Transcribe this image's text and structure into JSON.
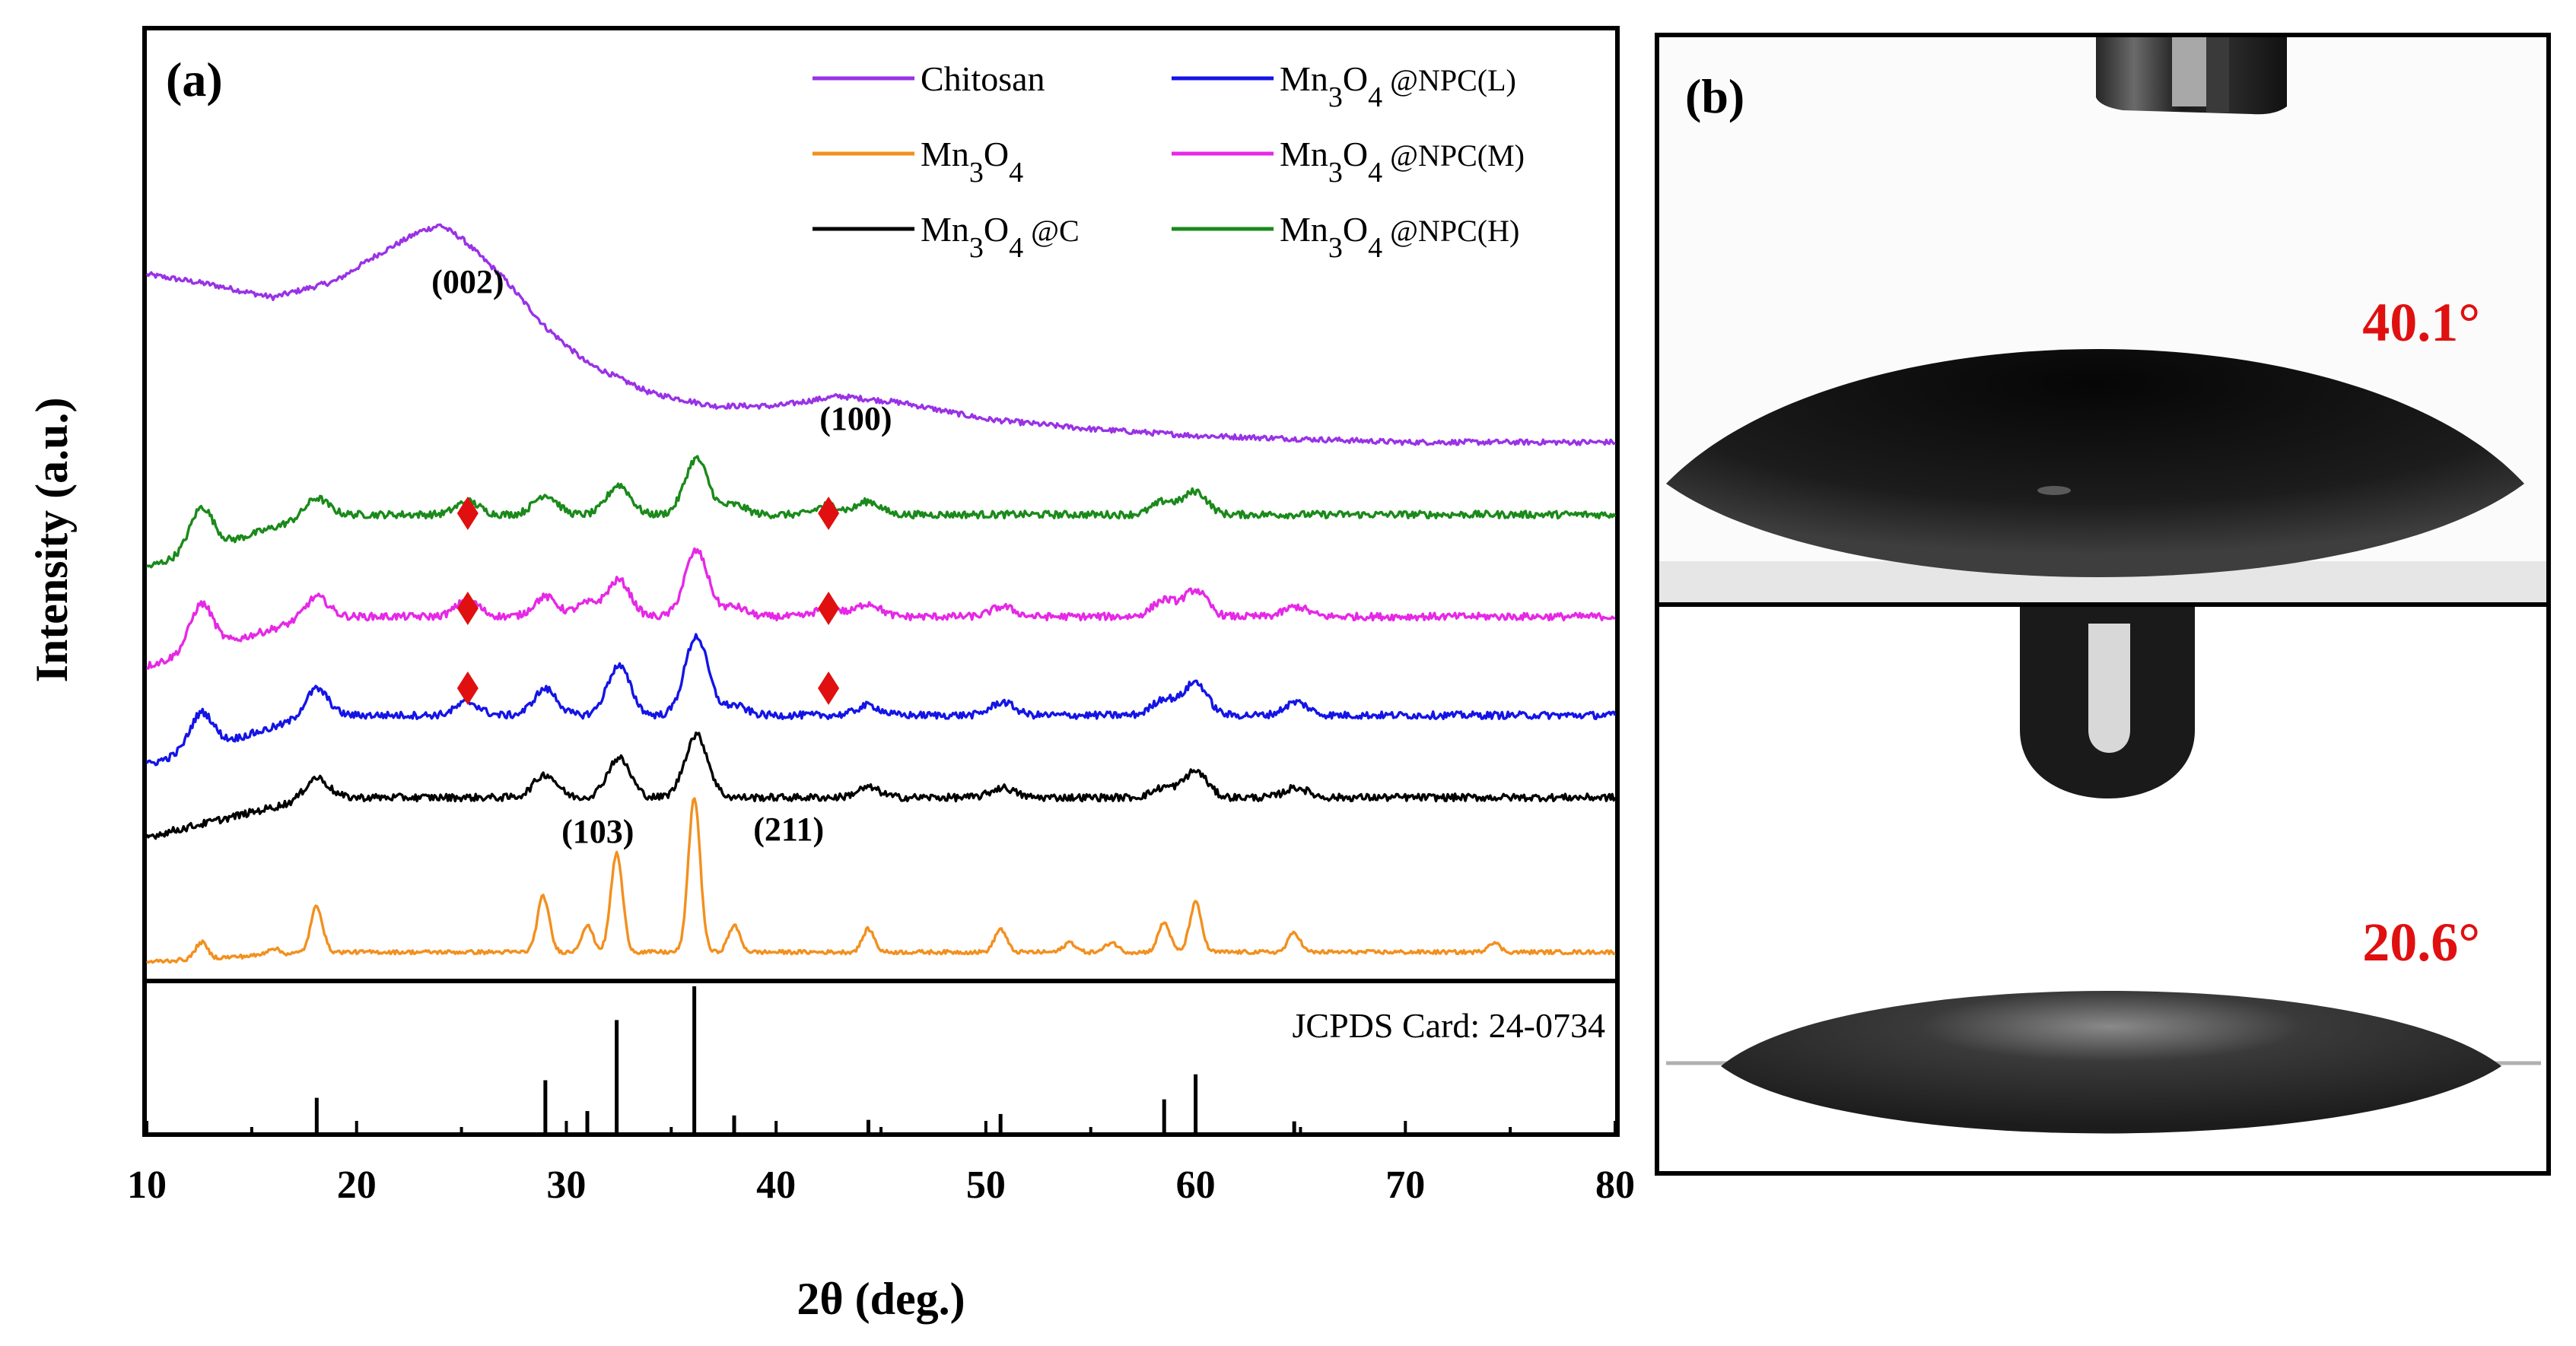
{
  "figure": {
    "panel_a_label": "(a)",
    "panel_b_label": "(b)",
    "xlabel": "2θ (deg.)",
    "ylabel": "Intensity (a.u.)",
    "jcpds_label": "JCPDS Card: 24-0734",
    "angle_top": "40.1°",
    "angle_bottom": "20.6°"
  },
  "colors": {
    "chitosan": "#9932e6",
    "mn3o4": "#f2901e",
    "mn3o4_c": "#000000",
    "npc_l": "#1414e6",
    "npc_m": "#e628e6",
    "npc_h": "#1a8a1a",
    "marker": "#e01010",
    "angle_text": "#e01010"
  },
  "legend": [
    {
      "key": "chitosan",
      "base": "Chitosan",
      "suffix": ""
    },
    {
      "key": "npc_l",
      "base": "Mn3O4",
      "suffix": " @NPC(L)"
    },
    {
      "key": "mn3o4",
      "base": "Mn3O4",
      "suffix": ""
    },
    {
      "key": "npc_m",
      "base": "Mn3O4",
      "suffix": " @NPC(M)"
    },
    {
      "key": "mn3o4_c",
      "base": "Mn3O4",
      "suffix": " @C"
    },
    {
      "key": "npc_h",
      "base": "Mn3O4",
      "suffix": " @NPC(H)"
    }
  ],
  "chart_data": [
    {
      "type": "line",
      "xlabel": "2θ (deg.)",
      "ylabel": "Intensity (a.u.)",
      "xlim": [
        10,
        80
      ],
      "xticks": [
        10,
        20,
        30,
        40,
        50,
        60,
        70,
        80
      ],
      "y_ticks_shown": false,
      "legend_position": "top-right",
      "series": [
        {
          "name": "Chitosan",
          "key": "chitosan",
          "x": [
            10,
            13,
            16,
            19,
            21,
            23,
            24,
            25,
            27,
            29,
            31,
            34,
            37,
            40,
            43,
            46,
            50,
            55,
            60,
            65,
            70,
            75,
            80
          ],
          "y": [
            20.9,
            20.6,
            20.2,
            20.7,
            21.5,
            22.2,
            22.4,
            22.0,
            20.8,
            19.3,
            18.2,
            17.3,
            16.9,
            16.9,
            17.2,
            17.0,
            16.5,
            16.2,
            16.0,
            15.9,
            15.8,
            15.8,
            15.8
          ]
        },
        {
          "name": "Mn3O4 @NPC(H)",
          "key": "npc_h",
          "peaks": [
            [
              12.6,
              1.3
            ],
            [
              18.1,
              0.5
            ],
            [
              25.3,
              0.4
            ],
            [
              29.0,
              0.6
            ],
            [
              32.5,
              0.9
            ],
            [
              36.2,
              1.7
            ],
            [
              38.0,
              0.3
            ],
            [
              42.5,
              0.3
            ],
            [
              44.4,
              0.4
            ],
            [
              58.5,
              0.4
            ],
            [
              60.0,
              0.7
            ]
          ],
          "baseline_start": 12.0,
          "baseline_end": 13.6
        },
        {
          "name": "Mn3O4 @NPC(M)",
          "key": "npc_m",
          "peaks": [
            [
              12.6,
              1.4
            ],
            [
              18.1,
              0.6
            ],
            [
              25.3,
              0.5
            ],
            [
              29.0,
              0.6
            ],
            [
              31.0,
              0.4
            ],
            [
              32.5,
              1.1
            ],
            [
              36.2,
              2.0
            ],
            [
              38.0,
              0.3
            ],
            [
              42.5,
              0.3
            ],
            [
              44.4,
              0.4
            ],
            [
              50.8,
              0.3
            ],
            [
              58.5,
              0.5
            ],
            [
              60.0,
              0.8
            ],
            [
              64.8,
              0.3
            ]
          ],
          "baseline_start": 9.0,
          "baseline_end": 10.5
        },
        {
          "name": "Mn3O4 @NPC(L)",
          "key": "npc_l",
          "peaks": [
            [
              12.6,
              1.1
            ],
            [
              18.1,
              0.8
            ],
            [
              25.3,
              0.4
            ],
            [
              29.0,
              0.8
            ],
            [
              32.5,
              1.5
            ],
            [
              36.2,
              2.4
            ],
            [
              38.0,
              0.3
            ],
            [
              44.4,
              0.3
            ],
            [
              50.8,
              0.4
            ],
            [
              58.5,
              0.5
            ],
            [
              60.0,
              1.0
            ],
            [
              64.8,
              0.4
            ]
          ],
          "baseline_start": 6.0,
          "baseline_end": 7.5
        },
        {
          "name": "Mn3O4 @C",
          "key": "mn3o4_c",
          "peaks": [
            [
              18.1,
              0.6
            ],
            [
              29.0,
              0.7
            ],
            [
              32.5,
              1.2
            ],
            [
              36.2,
              1.9
            ],
            [
              44.4,
              0.3
            ],
            [
              50.8,
              0.3
            ],
            [
              58.5,
              0.3
            ],
            [
              60.0,
              0.8
            ],
            [
              64.8,
              0.3
            ]
          ],
          "baseline_start": 3.8,
          "baseline_end": 5.0
        },
        {
          "name": "Mn3O4",
          "key": "mn3o4",
          "peaks": [
            [
              12.6,
              0.5
            ],
            [
              16.0,
              0.2
            ],
            [
              18.1,
              1.4
            ],
            [
              28.9,
              1.7
            ],
            [
              31.0,
              0.8
            ],
            [
              32.4,
              3.0
            ],
            [
              36.1,
              4.7
            ],
            [
              38.0,
              0.8
            ],
            [
              44.4,
              0.7
            ],
            [
              50.7,
              0.7
            ],
            [
              54.0,
              0.3
            ],
            [
              56.0,
              0.3
            ],
            [
              58.5,
              0.9
            ],
            [
              60.0,
              1.5
            ],
            [
              64.7,
              0.6
            ],
            [
              74.2,
              0.3
            ]
          ],
          "baseline_start": 0.0,
          "baseline_end": 0.3
        }
      ],
      "annotations": [
        "(002)",
        "(100)",
        "(103)",
        "(211)"
      ],
      "diamond_markers_x": [
        25.3,
        42.5
      ]
    },
    {
      "type": "bar",
      "title": "JCPDS Card: 24-0734",
      "xlim": [
        10,
        80
      ],
      "x": [
        18.1,
        29.0,
        31.0,
        32.4,
        36.1,
        38.0,
        44.4,
        50.7,
        58.5,
        60.0,
        64.7
      ],
      "values": [
        24,
        36,
        15,
        77,
        100,
        12,
        9,
        13,
        23,
        40,
        8
      ]
    }
  ]
}
